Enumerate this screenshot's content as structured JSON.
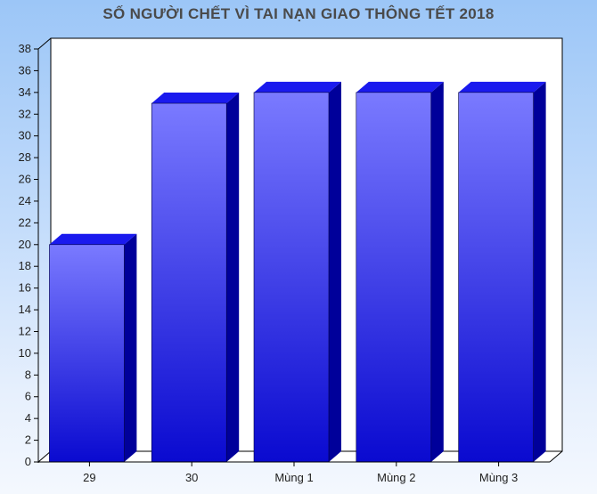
{
  "chart_data": {
    "type": "bar",
    "title": "SỐ NGƯỜI CHẾT VÌ TAI NẠN GIAO THÔNG TẾT 2018",
    "categories": [
      "29",
      "30",
      "Mùng 1",
      "Mùng 2",
      "Mùng 3"
    ],
    "values": [
      20,
      33,
      34,
      34,
      34
    ],
    "xlabel": "",
    "ylabel": "",
    "ylim": [
      0,
      38
    ],
    "yticks": [
      0,
      2,
      4,
      6,
      8,
      10,
      12,
      14,
      16,
      18,
      20,
      22,
      24,
      26,
      28,
      30,
      32,
      34,
      36,
      38
    ],
    "grid": false,
    "legend": "none",
    "style": "3d-bar",
    "colors": {
      "bar_top": "#7a7aff",
      "bar_bottom": "#0a0ad0",
      "bar_side": "#00009a",
      "bar_cap": "#1a1aee",
      "plot_bg": "#ffffff",
      "axis": "#000000"
    }
  }
}
